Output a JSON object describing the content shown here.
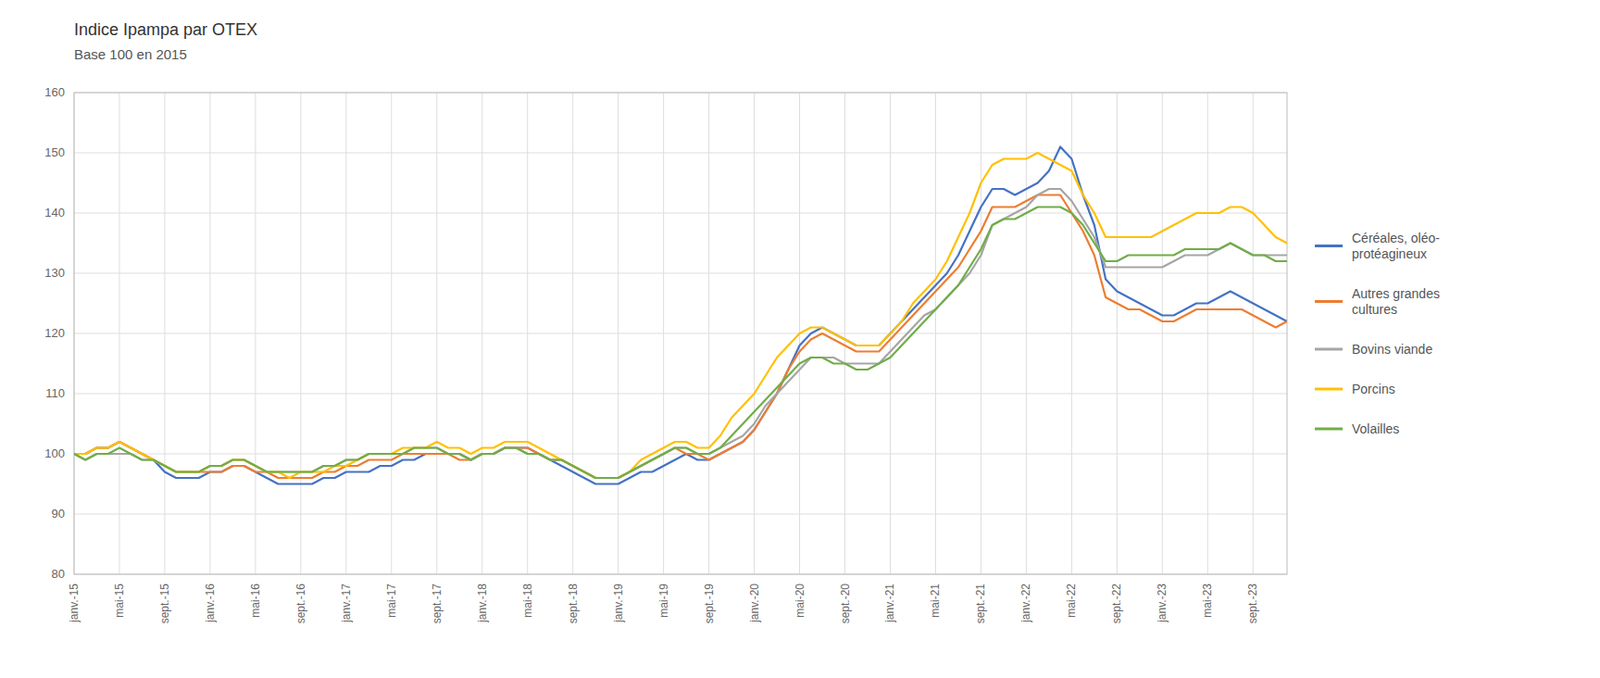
{
  "chart_data": {
    "type": "line",
    "title": "Indice Ipampa par OTEX",
    "subtitle": "Base 100 en 2015",
    "categories": [
      "janv.-15",
      null,
      null,
      null,
      "mai-15",
      null,
      null,
      null,
      "sept.-15",
      null,
      null,
      null,
      "janv.-16",
      null,
      null,
      null,
      "mai-16",
      null,
      null,
      null,
      "sept.-16",
      null,
      null,
      null,
      "janv.-17",
      null,
      null,
      null,
      "mai-17",
      null,
      null,
      null,
      "sept.-17",
      null,
      null,
      null,
      "janv.-18",
      null,
      null,
      null,
      "mai-18",
      null,
      null,
      null,
      "sept.-18",
      null,
      null,
      null,
      "janv.-19",
      null,
      null,
      null,
      "mai-19",
      null,
      null,
      null,
      "sept.-19",
      null,
      null,
      null,
      "janv.-20",
      null,
      null,
      null,
      "mai-20",
      null,
      null,
      null,
      "sept.-20",
      null,
      null,
      null,
      "janv.-21",
      null,
      null,
      null,
      "mai-21",
      null,
      null,
      null,
      "sept.-21",
      null,
      null,
      null,
      "janv.-22",
      null,
      null,
      null,
      "mai-22",
      null,
      null,
      null,
      "sept.-22",
      null,
      null,
      null,
      "janv.-23",
      null,
      null,
      null,
      "mai-23",
      null,
      null,
      null,
      "sept.-23",
      null,
      null,
      null
    ],
    "series": [
      {
        "name": "Céréales, oléo-\nprotéagineux",
        "color": "#4472C4",
        "values": [
          100,
          100,
          101,
          101,
          102,
          101,
          100,
          99,
          97,
          96,
          96,
          96,
          97,
          97,
          98,
          98,
          97,
          96,
          95,
          95,
          95,
          95,
          96,
          96,
          97,
          97,
          97,
          98,
          98,
          99,
          99,
          100,
          100,
          100,
          100,
          99,
          100,
          100,
          101,
          101,
          101,
          100,
          99,
          98,
          97,
          96,
          95,
          95,
          95,
          96,
          97,
          97,
          98,
          99,
          100,
          99,
          99,
          100,
          101,
          102,
          104,
          107,
          110,
          114,
          118,
          120,
          121,
          120,
          119,
          118,
          118,
          118,
          120,
          122,
          124,
          126,
          128,
          130,
          133,
          137,
          141,
          144,
          144,
          143,
          144,
          145,
          147,
          151,
          149,
          143,
          138,
          129,
          127,
          126,
          125,
          124,
          123,
          123,
          124,
          125,
          125,
          126,
          127,
          126,
          125,
          124,
          123,
          122
        ]
      },
      {
        "name": "Autres grandes\ncultures",
        "color": "#ED7D31",
        "values": [
          100,
          100,
          101,
          101,
          102,
          101,
          100,
          99,
          98,
          97,
          97,
          97,
          97,
          97,
          98,
          98,
          97,
          97,
          96,
          96,
          96,
          96,
          97,
          97,
          98,
          98,
          99,
          99,
          99,
          100,
          100,
          100,
          100,
          100,
          99,
          99,
          100,
          100,
          101,
          101,
          101,
          100,
          99,
          99,
          98,
          97,
          96,
          96,
          96,
          97,
          98,
          99,
          100,
          101,
          100,
          100,
          99,
          100,
          101,
          102,
          104,
          107,
          110,
          114,
          117,
          119,
          120,
          119,
          118,
          117,
          117,
          117,
          119,
          121,
          123,
          125,
          127,
          129,
          131,
          134,
          137,
          141,
          141,
          141,
          142,
          143,
          143,
          143,
          140,
          137,
          133,
          126,
          125,
          124,
          124,
          123,
          122,
          122,
          123,
          124,
          124,
          124,
          124,
          124,
          123,
          122,
          121,
          122
        ]
      },
      {
        "name": "Bovins viande",
        "color": "#A5A5A5",
        "values": [
          100,
          99,
          100,
          100,
          100,
          100,
          99,
          99,
          98,
          97,
          97,
          97,
          98,
          98,
          99,
          99,
          98,
          97,
          97,
          97,
          97,
          97,
          98,
          98,
          99,
          99,
          100,
          100,
          100,
          100,
          101,
          101,
          101,
          100,
          100,
          99,
          100,
          100,
          101,
          101,
          100,
          100,
          99,
          99,
          98,
          97,
          96,
          96,
          96,
          97,
          98,
          99,
          100,
          101,
          101,
          100,
          100,
          101,
          102,
          103,
          105,
          108,
          110,
          112,
          114,
          116,
          116,
          116,
          115,
          115,
          115,
          115,
          117,
          119,
          121,
          123,
          124,
          126,
          128,
          130,
          133,
          138,
          139,
          140,
          141,
          143,
          144,
          144,
          142,
          139,
          136,
          131,
          131,
          131,
          131,
          131,
          131,
          132,
          133,
          133,
          133,
          134,
          135,
          134,
          133,
          133,
          133,
          133
        ]
      },
      {
        "name": "Porcins",
        "color": "#FFC000",
        "values": [
          100,
          100,
          101,
          101,
          102,
          101,
          100,
          99,
          98,
          97,
          97,
          97,
          98,
          98,
          99,
          99,
          98,
          97,
          97,
          96,
          97,
          97,
          97,
          98,
          98,
          99,
          100,
          100,
          100,
          101,
          101,
          101,
          102,
          101,
          101,
          100,
          101,
          101,
          102,
          102,
          102,
          101,
          100,
          99,
          98,
          97,
          96,
          96,
          96,
          97,
          99,
          100,
          101,
          102,
          102,
          101,
          101,
          103,
          106,
          108,
          110,
          113,
          116,
          118,
          120,
          121,
          121,
          120,
          119,
          118,
          118,
          118,
          120,
          122,
          125,
          127,
          129,
          132,
          136,
          140,
          145,
          148,
          149,
          149,
          149,
          150,
          149,
          148,
          147,
          143,
          140,
          136,
          136,
          136,
          136,
          136,
          137,
          138,
          139,
          140,
          140,
          140,
          141,
          141,
          140,
          138,
          136,
          135
        ]
      },
      {
        "name": "Volailles",
        "color": "#70AD47",
        "values": [
          100,
          99,
          100,
          100,
          101,
          100,
          99,
          99,
          98,
          97,
          97,
          97,
          98,
          98,
          99,
          99,
          98,
          97,
          97,
          97,
          97,
          97,
          98,
          98,
          99,
          99,
          100,
          100,
          100,
          100,
          101,
          101,
          101,
          100,
          100,
          99,
          100,
          100,
          101,
          101,
          100,
          100,
          99,
          99,
          98,
          97,
          96,
          96,
          96,
          97,
          98,
          99,
          100,
          101,
          101,
          100,
          100,
          101,
          103,
          105,
          107,
          109,
          111,
          113,
          115,
          116,
          116,
          115,
          115,
          114,
          114,
          115,
          116,
          118,
          120,
          122,
          124,
          126,
          128,
          131,
          134,
          138,
          139,
          139,
          140,
          141,
          141,
          141,
          140,
          138,
          135,
          132,
          132,
          133,
          133,
          133,
          133,
          133,
          134,
          134,
          134,
          134,
          135,
          134,
          133,
          133,
          132,
          132
        ]
      }
    ],
    "ylim": [
      80,
      160
    ],
    "yticks": [
      80,
      90,
      100,
      110,
      120,
      130,
      140,
      150,
      160
    ],
    "grid": true,
    "legend": "right"
  }
}
